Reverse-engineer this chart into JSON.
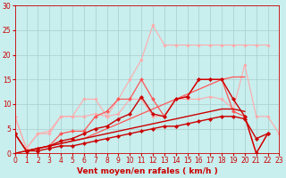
{
  "xlabel": "Vent moyen/en rafales ( km/h )",
  "background_color": "#c8eeee",
  "grid_color": "#aacccc",
  "x": [
    0,
    1,
    2,
    3,
    4,
    5,
    6,
    7,
    8,
    9,
    10,
    11,
    12,
    13,
    14,
    15,
    16,
    17,
    18,
    19,
    20,
    21,
    22,
    23
  ],
  "series": [
    {
      "name": "line_light1",
      "color": "#ffaaaa",
      "linewidth": 0.8,
      "marker": "D",
      "markersize": 1.8,
      "y": [
        7.5,
        1,
        4,
        4.5,
        7.5,
        7.5,
        11,
        11,
        7.5,
        11,
        15,
        19,
        26,
        22,
        22,
        22,
        22,
        22,
        22,
        22,
        22,
        22,
        22,
        null
      ]
    },
    {
      "name": "line_light2",
      "color": "#ffaaaa",
      "linewidth": 0.8,
      "marker": "D",
      "markersize": 1.8,
      "y": [
        7.5,
        1,
        4,
        4,
        7.5,
        7.5,
        7.5,
        8,
        7.5,
        8,
        11,
        11,
        7.5,
        7.5,
        11,
        11,
        11,
        11.5,
        11,
        9,
        18,
        7.5,
        7.5,
        4
      ]
    },
    {
      "name": "line_light3_straight",
      "color": "#ffaaaa",
      "linewidth": 0.8,
      "marker": null,
      "markersize": 0,
      "y": [
        0,
        null,
        null,
        null,
        null,
        null,
        null,
        null,
        null,
        null,
        null,
        null,
        null,
        null,
        null,
        null,
        null,
        null,
        null,
        null,
        18,
        null,
        null,
        null
      ]
    },
    {
      "name": "line_medium1",
      "color": "#ff5555",
      "linewidth": 0.9,
      "marker": "D",
      "markersize": 2.0,
      "y": [
        4,
        0.5,
        1,
        1.5,
        4,
        4.5,
        4.5,
        7.5,
        8.5,
        11,
        11,
        15,
        11,
        7.5,
        11,
        11.5,
        15,
        15,
        15,
        8.5,
        7.5,
        0,
        4,
        null
      ]
    },
    {
      "name": "line_medium2_straight",
      "color": "#ff5555",
      "linewidth": 0.9,
      "marker": null,
      "markersize": 0,
      "y": [
        0,
        0.5,
        1,
        1.5,
        2,
        2.5,
        3,
        4,
        5,
        6,
        7,
        8,
        9,
        10,
        11,
        12,
        13,
        14,
        15,
        15.5,
        15.5,
        null,
        null,
        null
      ]
    },
    {
      "name": "line_dark1",
      "color": "#cc0000",
      "linewidth": 1.0,
      "marker": "D",
      "markersize": 2.2,
      "y": [
        4,
        0.5,
        1,
        1.5,
        2.5,
        3,
        4,
        5,
        5.5,
        7,
        8,
        11.5,
        8,
        7.5,
        11,
        11.5,
        15,
        15,
        15,
        11,
        7.5,
        0,
        4,
        null
      ]
    },
    {
      "name": "line_dark2",
      "color": "#cc0000",
      "linewidth": 1.0,
      "marker": "D",
      "markersize": 2.2,
      "y": [
        4,
        0.5,
        0.5,
        1,
        1.5,
        1.5,
        2,
        2.5,
        3,
        3.5,
        4,
        4.5,
        5,
        5.5,
        5.5,
        6,
        6.5,
        7,
        7.5,
        7.5,
        7,
        3,
        4,
        null
      ]
    },
    {
      "name": "line_dark3_straight",
      "color": "#cc0000",
      "linewidth": 1.0,
      "marker": null,
      "markersize": 0,
      "y": [
        0,
        0.5,
        1,
        1.5,
        2,
        2.5,
        3,
        3.5,
        4,
        4.5,
        5,
        5.5,
        6,
        6.5,
        7,
        7.5,
        8,
        8.5,
        9,
        9,
        8.5,
        null,
        null,
        null
      ]
    }
  ],
  "xlim": [
    0,
    23
  ],
  "ylim": [
    0,
    30
  ],
  "yticks": [
    0,
    5,
    10,
    15,
    20,
    25,
    30
  ],
  "xticks": [
    0,
    1,
    2,
    3,
    4,
    5,
    6,
    7,
    8,
    9,
    10,
    11,
    12,
    13,
    14,
    15,
    16,
    17,
    18,
    19,
    20,
    21,
    22,
    23
  ],
  "tick_color": "#cc0000",
  "label_color": "#cc0000",
  "axis_label_fontsize": 6.5,
  "tick_fontsize": 5.5
}
